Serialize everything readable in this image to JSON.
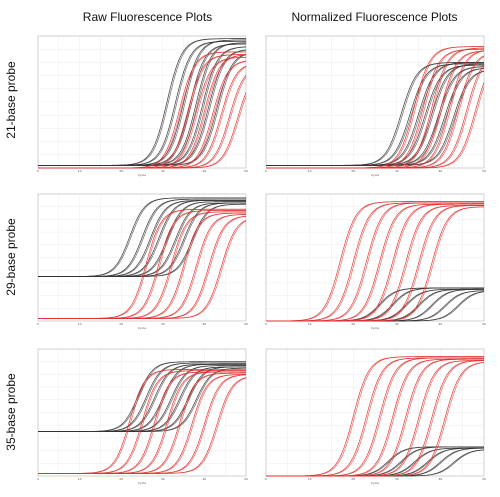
{
  "column_titles": [
    "Raw Fluorescence Plots",
    "Normalized Fluorescence Plots"
  ],
  "row_titles": [
    "21-base probe",
    "29-base probe",
    "35-base probe"
  ],
  "colors": {
    "black_series": "#333333",
    "red_series": "#e03030",
    "grid": "#e6e6e6",
    "frame": "#999999"
  },
  "axis_x_label": "Cycle",
  "chart_data": [
    {
      "type": "line",
      "probe": "21-base probe",
      "plot": "Raw Fluorescence Plots",
      "xlim": [
        0,
        50
      ],
      "ylim": [
        0,
        1
      ],
      "black": {
        "base": 0.02,
        "top": 0.98,
        "midpoints": [
          31,
          33,
          35,
          36.5,
          38,
          39.5,
          41,
          43
        ],
        "tops": [
          0.98,
          0.96,
          0.97,
          0.94,
          0.95,
          0.92,
          0.9,
          0.88
        ]
      },
      "red": {
        "base": 0.0,
        "top": 0.88,
        "midpoints": [
          34,
          36,
          38,
          40,
          42,
          44,
          46,
          48
        ],
        "tops": [
          0.88,
          0.86,
          0.84,
          0.86,
          0.82,
          0.8,
          0.78,
          0.76
        ]
      }
    },
    {
      "type": "line",
      "probe": "21-base probe",
      "plot": "Normalized Fluorescence Plots",
      "xlim": [
        0,
        50
      ],
      "ylim": [
        0,
        1
      ],
      "black": {
        "base": 0.02,
        "top": 0.8,
        "midpoints": [
          31,
          33,
          35,
          36.5,
          38,
          39.5,
          41,
          43
        ],
        "tops": [
          0.8,
          0.79,
          0.8,
          0.78,
          0.79,
          0.77,
          0.76,
          0.75
        ]
      },
      "red": {
        "base": 0.0,
        "top": 0.9,
        "midpoints": [
          34,
          36,
          38,
          40,
          42,
          44,
          46,
          48
        ],
        "tops": [
          0.92,
          0.9,
          0.91,
          0.89,
          0.9,
          0.88,
          0.87,
          0.86
        ]
      }
    },
    {
      "type": "line",
      "probe": "29-base probe",
      "plot": "Raw Fluorescence Plots",
      "xlim": [
        0,
        50
      ],
      "ylim": [
        0,
        1
      ],
      "black": {
        "base": 0.35,
        "top": 0.97,
        "midpoints": [
          22,
          25,
          27,
          29,
          31,
          33,
          35,
          37
        ],
        "tops": [
          0.97,
          0.96,
          0.95,
          0.95,
          0.94,
          0.93,
          0.93,
          0.92
        ]
      },
      "red": {
        "base": 0.02,
        "top": 0.85,
        "midpoints": [
          26,
          29,
          32,
          35,
          38,
          41,
          44
        ],
        "tops": [
          0.88,
          0.87,
          0.86,
          0.85,
          0.84,
          0.83,
          0.82
        ]
      }
    },
    {
      "type": "line",
      "probe": "29-base probe",
      "plot": "Normalized Fluorescence Plots",
      "xlim": [
        0,
        50
      ],
      "ylim": [
        0,
        1
      ],
      "black": {
        "base": 0.0,
        "top": 0.25,
        "midpoints": [
          26,
          29,
          32,
          35,
          38,
          41,
          44
        ],
        "tops": [
          0.26,
          0.26,
          0.25,
          0.25,
          0.25,
          0.24,
          0.24
        ]
      },
      "red": {
        "base": 0.0,
        "top": 0.92,
        "midpoints": [
          17,
          20,
          23,
          26,
          29,
          32,
          35,
          38
        ],
        "tops": [
          0.94,
          0.93,
          0.93,
          0.92,
          0.92,
          0.91,
          0.91,
          0.9
        ]
      }
    },
    {
      "type": "line",
      "probe": "35-base probe",
      "plot": "Raw Fluorescence Plots",
      "xlim": [
        0,
        50
      ],
      "ylim": [
        0,
        1
      ],
      "black": {
        "base": 0.35,
        "top": 0.88,
        "midpoints": [
          24,
          26,
          28,
          30,
          32,
          34,
          36,
          38
        ],
        "tops": [
          0.9,
          0.89,
          0.88,
          0.88,
          0.87,
          0.86,
          0.86,
          0.85
        ]
      },
      "red": {
        "base": 0.02,
        "top": 0.82,
        "midpoints": [
          22,
          25,
          28,
          31,
          34,
          37,
          40,
          43
        ],
        "tops": [
          0.84,
          0.83,
          0.82,
          0.82,
          0.81,
          0.8,
          0.8,
          0.79
        ]
      }
    },
    {
      "type": "line",
      "probe": "35-base probe",
      "plot": "Normalized Fluorescence Plots",
      "xlim": [
        0,
        50
      ],
      "ylim": [
        0,
        1
      ],
      "black": {
        "base": 0.0,
        "top": 0.22,
        "midpoints": [
          28,
          31,
          34,
          37,
          40,
          43
        ],
        "tops": [
          0.23,
          0.23,
          0.22,
          0.22,
          0.22,
          0.21
        ]
      },
      "red": {
        "base": 0.0,
        "top": 0.92,
        "midpoints": [
          20,
          23,
          26,
          29,
          32,
          35,
          38,
          41
        ],
        "tops": [
          0.94,
          0.93,
          0.93,
          0.92,
          0.92,
          0.91,
          0.91,
          0.9
        ]
      }
    }
  ]
}
